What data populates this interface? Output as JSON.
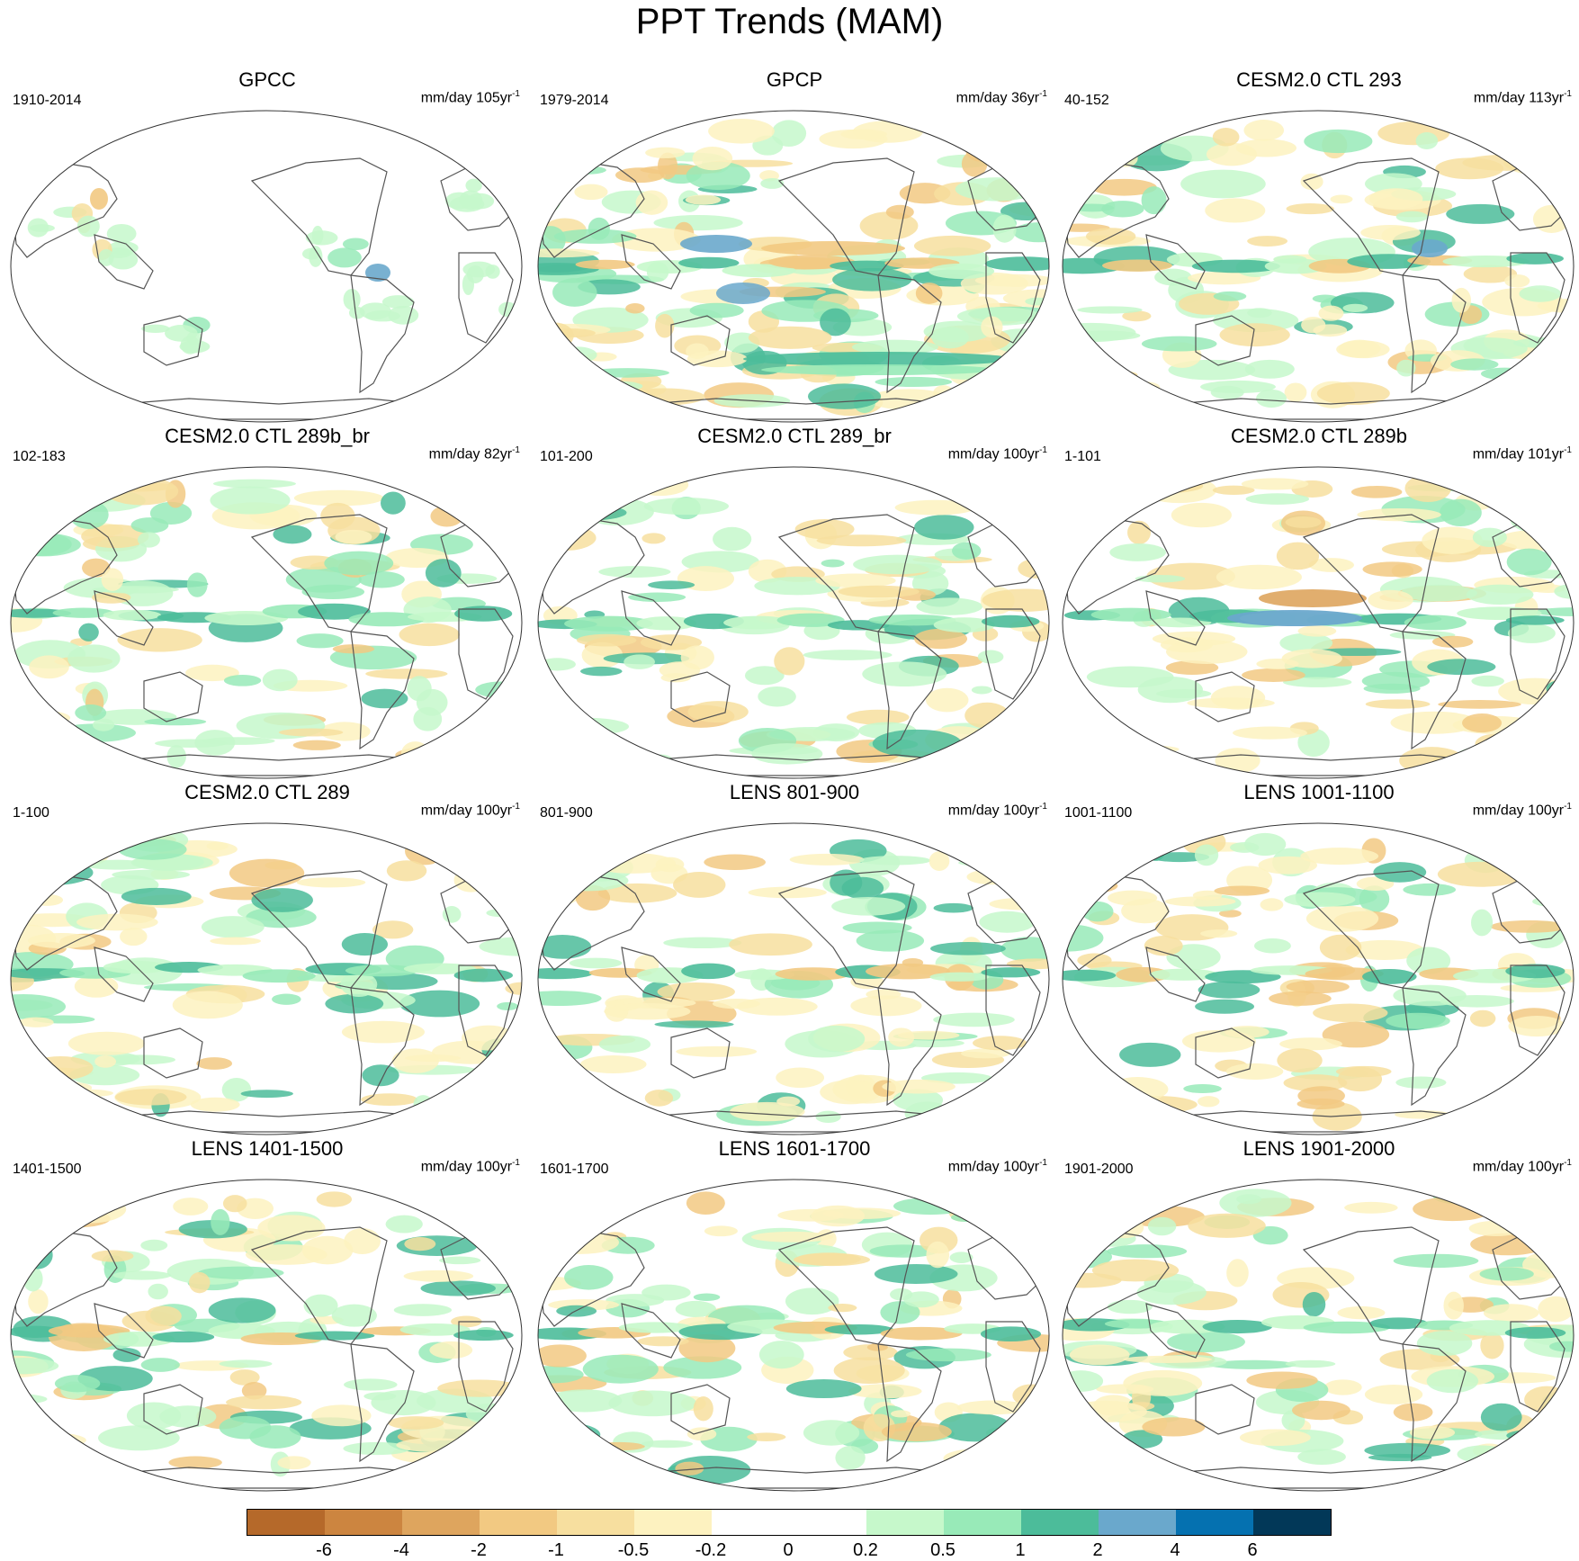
{
  "title": "PPT Trends (MAM)",
  "panels": [
    {
      "title": "GPCC",
      "period": "1910-2014",
      "units": "mm/day 105yr",
      "units_exp": "-1",
      "pattern": "gpcc"
    },
    {
      "title": "GPCP",
      "period": "1979-2014",
      "units": "mm/day 36yr",
      "units_exp": "-1",
      "pattern": "gpcp"
    },
    {
      "title": "CESM2.0 CTL 293",
      "period": "40-152",
      "units": "mm/day 113yr",
      "units_exp": "-1",
      "pattern": "a"
    },
    {
      "title": "CESM2.0 CTL 289b_br",
      "period": "102-183",
      "units": "mm/day 82yr",
      "units_exp": "-1",
      "pattern": "b"
    },
    {
      "title": "CESM2.0 CTL 289_br",
      "period": "101-200",
      "units": "mm/day 100yr",
      "units_exp": "-1",
      "pattern": "c"
    },
    {
      "title": "CESM2.0 CTL 289b",
      "period": "1-101",
      "units": "mm/day 101yr",
      "units_exp": "-1",
      "pattern": "d"
    },
    {
      "title": "CESM2.0 CTL 289",
      "period": "1-100",
      "units": "mm/day 100yr",
      "units_exp": "-1",
      "pattern": "e"
    },
    {
      "title": "LENS 801-900",
      "period": "801-900",
      "units": "mm/day 100yr",
      "units_exp": "-1",
      "pattern": "f"
    },
    {
      "title": "LENS 1001-1100",
      "period": "1001-1100",
      "units": "mm/day 100yr",
      "units_exp": "-1",
      "pattern": "g"
    },
    {
      "title": "LENS 1401-1500",
      "period": "1401-1500",
      "units": "mm/day 100yr",
      "units_exp": "-1",
      "pattern": "h"
    },
    {
      "title": "LENS 1601-1700",
      "period": "1601-1700",
      "units": "mm/day 100yr",
      "units_exp": "-1",
      "pattern": "i"
    },
    {
      "title": "LENS 1901-2000",
      "period": "1901-2000",
      "units": "mm/day 100yr",
      "units_exp": "-1",
      "pattern": "j"
    }
  ],
  "colorbar": {
    "colors": [
      "#b5692a",
      "#cc8540",
      "#dea55e",
      "#f2c982",
      "#f7df9f",
      "#fdf2c0",
      "#ffffff",
      "#ffffff",
      "#c6f8cb",
      "#98eab8",
      "#4cbc9a",
      "#6aa8cc",
      "#0571b0",
      "#023858"
    ],
    "labels": [
      "-6",
      "-4",
      "-2",
      "-1",
      "-0.5",
      "-0.2",
      "0",
      "0.2",
      "0.5",
      "1",
      "2",
      "4",
      "6"
    ]
  }
}
